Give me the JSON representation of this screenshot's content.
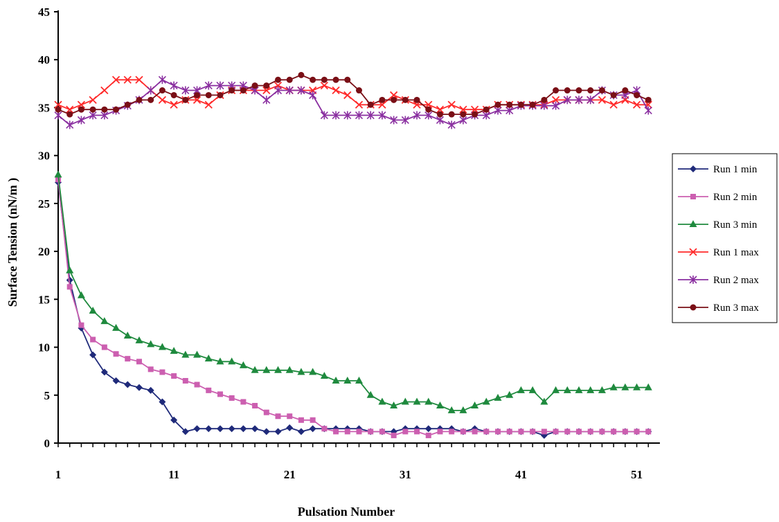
{
  "chart_data": {
    "type": "line",
    "title": "",
    "xlabel": "Pulsation Number",
    "ylabel": "Surface Tension (nN/m )",
    "xlim": [
      1,
      53
    ],
    "ylim": [
      0,
      45
    ],
    "x_ticks": [
      1,
      11,
      21,
      31,
      41,
      51
    ],
    "y_ticks": [
      0,
      5,
      10,
      15,
      20,
      25,
      30,
      35,
      40,
      45
    ],
    "grid": false,
    "legend_position": "right",
    "x": [
      1,
      2,
      3,
      4,
      5,
      6,
      7,
      8,
      9,
      10,
      11,
      12,
      13,
      14,
      15,
      16,
      17,
      18,
      19,
      20,
      21,
      22,
      23,
      24,
      25,
      26,
      27,
      28,
      29,
      30,
      31,
      32,
      33,
      34,
      35,
      36,
      37,
      38,
      39,
      40,
      41,
      42,
      43,
      44,
      45,
      46,
      47,
      48,
      49,
      50,
      51,
      52
    ],
    "series": [
      {
        "name": "Run 1 min",
        "color": "#1f2a7a",
        "marker": "diamond",
        "values": [
          27.2,
          17.0,
          12.0,
          9.2,
          7.4,
          6.5,
          6.1,
          5.8,
          5.5,
          4.3,
          2.4,
          1.2,
          1.5,
          1.5,
          1.5,
          1.5,
          1.5,
          1.5,
          1.2,
          1.2,
          1.6,
          1.2,
          1.5,
          1.5,
          1.5,
          1.5,
          1.5,
          1.2,
          1.2,
          1.2,
          1.5,
          1.5,
          1.5,
          1.5,
          1.5,
          1.2,
          1.5,
          1.2,
          1.2,
          1.2,
          1.2,
          1.2,
          0.8,
          1.2,
          1.2,
          1.2,
          1.2,
          1.2,
          1.2,
          1.2,
          1.2,
          1.2
        ]
      },
      {
        "name": "Run 2 min",
        "color": "#cc5fb0",
        "marker": "square",
        "values": [
          27.5,
          16.3,
          12.3,
          10.8,
          10.0,
          9.3,
          8.8,
          8.5,
          7.7,
          7.4,
          7.0,
          6.5,
          6.1,
          5.5,
          5.1,
          4.7,
          4.3,
          3.9,
          3.2,
          2.8,
          2.8,
          2.4,
          2.4,
          1.5,
          1.2,
          1.2,
          1.2,
          1.2,
          1.2,
          0.8,
          1.2,
          1.2,
          0.8,
          1.2,
          1.2,
          1.2,
          1.2,
          1.2,
          1.2,
          1.2,
          1.2,
          1.2,
          1.2,
          1.2,
          1.2,
          1.2,
          1.2,
          1.2,
          1.2,
          1.2,
          1.2,
          1.2
        ]
      },
      {
        "name": "Run 3 min",
        "color": "#1f8a3e",
        "marker": "triangle",
        "values": [
          28.0,
          18.0,
          15.4,
          13.8,
          12.7,
          12.0,
          11.2,
          10.7,
          10.3,
          10.0,
          9.6,
          9.2,
          9.2,
          8.8,
          8.5,
          8.5,
          8.1,
          7.6,
          7.6,
          7.6,
          7.6,
          7.4,
          7.4,
          7.0,
          6.5,
          6.5,
          6.5,
          5.0,
          4.3,
          3.9,
          4.3,
          4.3,
          4.3,
          3.9,
          3.4,
          3.4,
          3.9,
          4.3,
          4.7,
          5.0,
          5.5,
          5.5,
          4.3,
          5.5,
          5.5,
          5.5,
          5.5,
          5.5,
          5.8,
          5.8,
          5.8,
          5.8
        ]
      },
      {
        "name": "Run 1 max",
        "color": "#ff2a2a",
        "marker": "x",
        "values": [
          35.3,
          34.8,
          35.3,
          35.8,
          36.8,
          37.9,
          37.9,
          37.9,
          36.8,
          35.8,
          35.3,
          35.8,
          35.8,
          35.3,
          36.3,
          36.8,
          36.8,
          36.8,
          36.8,
          37.3,
          36.8,
          36.8,
          36.8,
          37.3,
          36.8,
          36.3,
          35.3,
          35.3,
          35.3,
          36.3,
          35.8,
          35.3,
          35.3,
          34.8,
          35.3,
          34.8,
          34.8,
          34.8,
          35.3,
          35.3,
          35.3,
          35.3,
          35.3,
          35.8,
          35.8,
          35.8,
          35.8,
          35.8,
          35.3,
          35.8,
          35.3,
          35.3
        ]
      },
      {
        "name": "Run 2 max",
        "color": "#8a2fa0",
        "marker": "star",
        "values": [
          34.2,
          33.2,
          33.7,
          34.2,
          34.2,
          34.7,
          35.2,
          35.8,
          36.8,
          37.9,
          37.3,
          36.8,
          36.8,
          37.3,
          37.3,
          37.3,
          37.3,
          36.8,
          35.8,
          36.8,
          36.8,
          36.8,
          36.3,
          34.2,
          34.2,
          34.2,
          34.2,
          34.2,
          34.2,
          33.7,
          33.7,
          34.2,
          34.2,
          33.7,
          33.2,
          33.7,
          34.2,
          34.2,
          34.7,
          34.7,
          35.2,
          35.2,
          35.2,
          35.2,
          35.8,
          35.8,
          35.8,
          36.8,
          36.3,
          36.3,
          36.8,
          34.7
        ]
      },
      {
        "name": "Run 3 max",
        "color": "#7a0f16",
        "marker": "circle",
        "values": [
          34.8,
          34.3,
          34.8,
          34.8,
          34.8,
          34.8,
          35.3,
          35.8,
          35.8,
          36.8,
          36.3,
          35.8,
          36.3,
          36.3,
          36.3,
          36.8,
          36.8,
          37.3,
          37.3,
          37.9,
          37.9,
          38.4,
          37.9,
          37.9,
          37.9,
          37.9,
          36.8,
          35.3,
          35.8,
          35.8,
          35.8,
          35.8,
          34.8,
          34.3,
          34.3,
          34.3,
          34.3,
          34.8,
          35.3,
          35.3,
          35.3,
          35.3,
          35.8,
          36.8,
          36.8,
          36.8,
          36.8,
          36.8,
          36.3,
          36.8,
          36.3,
          35.8
        ]
      }
    ]
  }
}
